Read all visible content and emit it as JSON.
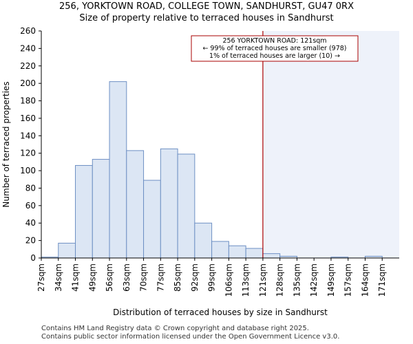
{
  "chart_data": {
    "type": "bar",
    "title": "256, YORKTOWN ROAD, COLLEGE TOWN, SANDHURST, GU47 0RX",
    "subtitle": "Size of property relative to terraced houses in Sandhurst",
    "xlabel": "Distribution of terraced houses by size in Sandhurst",
    "ylabel": "Number of terraced properties",
    "categories": [
      "27sqm",
      "34sqm",
      "41sqm",
      "49sqm",
      "56sqm",
      "63sqm",
      "70sqm",
      "77sqm",
      "85sqm",
      "92sqm",
      "99sqm",
      "106sqm",
      "113sqm",
      "121sqm",
      "128sqm",
      "135sqm",
      "142sqm",
      "149sqm",
      "157sqm",
      "164sqm",
      "171sqm"
    ],
    "values": [
      1,
      17,
      106,
      113,
      202,
      123,
      89,
      125,
      119,
      40,
      19,
      14,
      11,
      5,
      2,
      0,
      0,
      1,
      0,
      2,
      0
    ],
    "ylim": [
      0,
      260
    ],
    "yticks": [
      0,
      20,
      40,
      60,
      80,
      100,
      120,
      140,
      160,
      180,
      200,
      220,
      240,
      260
    ],
    "marker_category": "121sqm",
    "annotation": {
      "line1": "256 YORKTOWN ROAD: 121sqm",
      "line2": "← 99% of terraced houses are smaller (978)",
      "line3": "1% of terraced houses are larger (10) →"
    },
    "colors": {
      "bar_fill": "#dce6f4",
      "bar_stroke": "#6d8fc3",
      "highlight_bg": "#eef2fa",
      "marker": "#aa0000",
      "annotation_border": "#aa0000"
    }
  },
  "footer": {
    "line1": "Contains HM Land Registry data © Crown copyright and database right 2025.",
    "line2": "Contains public sector information licensed under the Open Government Licence v3.0."
  }
}
